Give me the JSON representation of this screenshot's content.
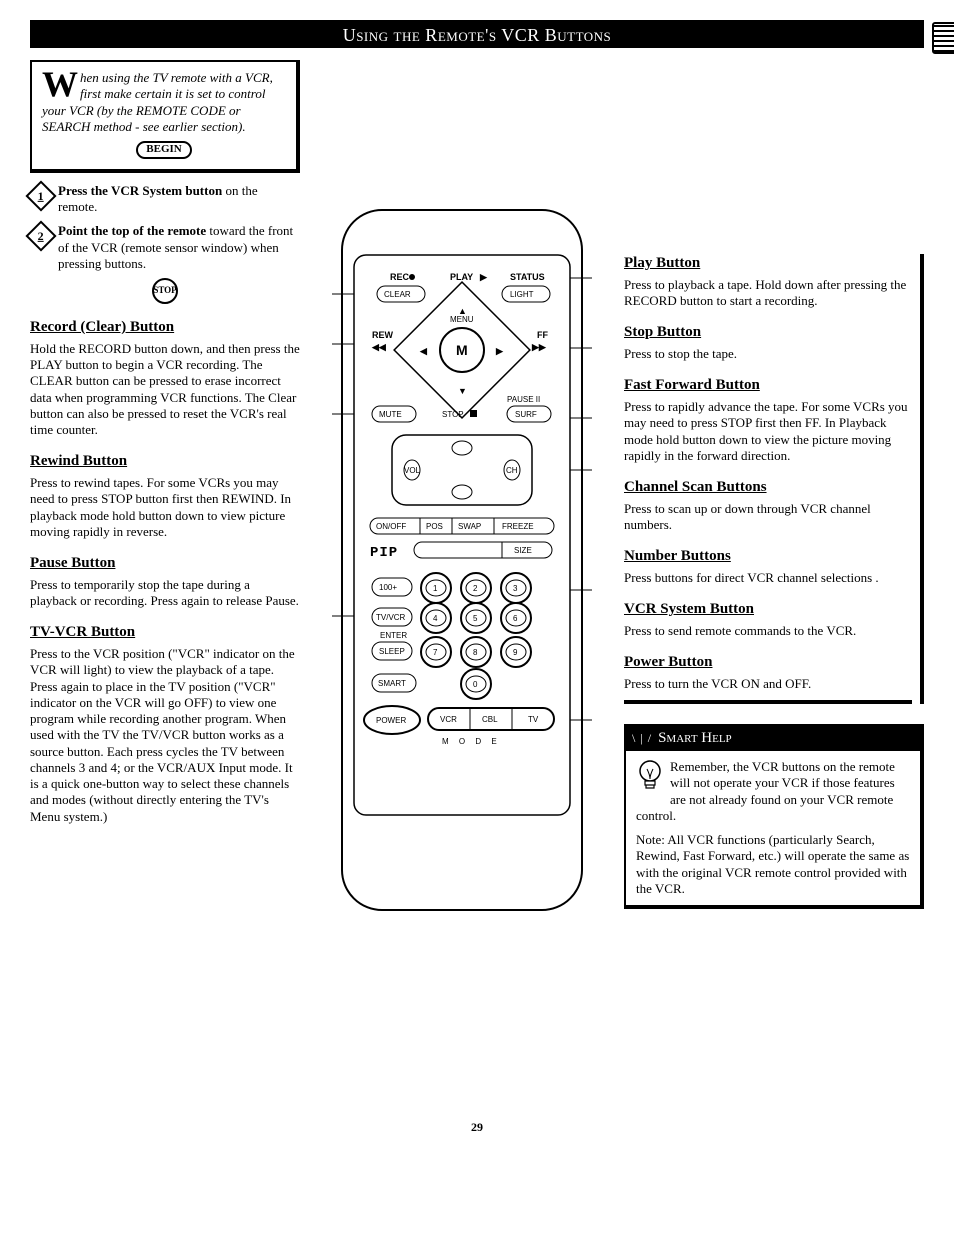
{
  "title": "Using the Remote's VCR Buttons",
  "page_number": "29",
  "intro": {
    "dropcap": "W",
    "text": "hen using the TV remote with a VCR, first make certain it is set to control your VCR (by the REMOTE CODE or SEARCH method - see earlier section).",
    "begin": "BEGIN"
  },
  "steps": [
    {
      "n": "1",
      "bold": "Press the VCR System button",
      "rest": " on the remote."
    },
    {
      "n": "2",
      "bold": "Point the top of the remote",
      "rest": " toward the front of the VCR (remote sensor window) when pressing buttons."
    }
  ],
  "stop": "STOP",
  "left_sections": [
    {
      "h": "Record (Clear) Button",
      "p": "Hold the RECORD button down, and then press the PLAY button to begin a VCR recording. The CLEAR button can be pressed to erase incorrect data when programming VCR functions. The Clear button can also be pressed to reset the VCR's real time counter."
    },
    {
      "h": "Rewind Button",
      "p": "Press to rewind tapes. For some VCRs you may need to press STOP button first then REWIND. In playback mode hold button down to view picture moving rapidly in reverse."
    },
    {
      "h": "Pause Button",
      "p": "Press to temporarily stop the tape during a playback or recording. Press again to release Pause."
    },
    {
      "h": "TV-VCR Button",
      "p": "Press to the VCR position (\"VCR\" indicator on the VCR will light) to view the playback of a tape. Press again to place in the TV position (\"VCR\" indicator on the VCR will go OFF) to view one program while recording another program. When used with the TV the TV/VCR button works as a source button. Each press cycles the TV between channels 3 and 4; or the VCR/AUX Input mode. It is a quick one-button way to select these channels and modes (without directly entering the TV's Menu system.)"
    }
  ],
  "right_sections": [
    {
      "h": "Play Button",
      "p": "Press to playback a tape. Hold down after pressing the RECORD button to start a recording."
    },
    {
      "h": "Stop Button",
      "p": "Press to stop the tape."
    },
    {
      "h": "Fast Forward Button",
      "p": "Press to rapidly advance the tape. For some VCRs you may need to press STOP first then FF. In Playback mode hold button down to view the picture moving rapidly in the forward direction."
    },
    {
      "h": "Channel Scan Buttons",
      "p": "Press to scan up or down through VCR channel numbers."
    },
    {
      "h": "Number Buttons",
      "p": "Press buttons for direct VCR channel selections ."
    },
    {
      "h": "VCR System Button",
      "p": "Press to send remote commands to the VCR."
    },
    {
      "h": "Power Button",
      "p": "Press to turn the VCR ON and OFF."
    }
  ],
  "smart_help": {
    "title": "Smart Help",
    "p1": "Remember, the VCR buttons on the remote will not operate your VCR if those features are not already found on your VCR remote control.",
    "p2": "Note: All VCR functions (particularly Search, Rewind, Fast Forward, etc.) will operate the same as with the original VCR remote control provided with the VCR."
  },
  "remote": {
    "rec": "REC",
    "clear": "CLEAR",
    "play": "PLAY",
    "status": "STATUS",
    "light": "LIGHT",
    "rew": "REW",
    "ff": "FF",
    "menu": "MENU",
    "m": "M",
    "mute": "MUTE",
    "stop": "STOP",
    "pause": "PAUSE II",
    "surf": "SURF",
    "vol": "VOL",
    "ch": "CH",
    "onoff": "ON/OFF",
    "pos": "POS",
    "swap": "SWAP",
    "freeze": "FREEZE",
    "pip": "PIP",
    "size": "SIZE",
    "hundred": "100+",
    "tvvcr": "TV/VCR",
    "enter": "ENTER",
    "sleep": "SLEEP",
    "smart": "SMART",
    "power": "POWER",
    "vcr": "VCR",
    "cbl": "CBL",
    "tv": "TV",
    "mode": "M    O    D    E",
    "digits": [
      "1",
      "2",
      "3",
      "4",
      "5",
      "6",
      "7",
      "8",
      "9",
      "0"
    ]
  }
}
